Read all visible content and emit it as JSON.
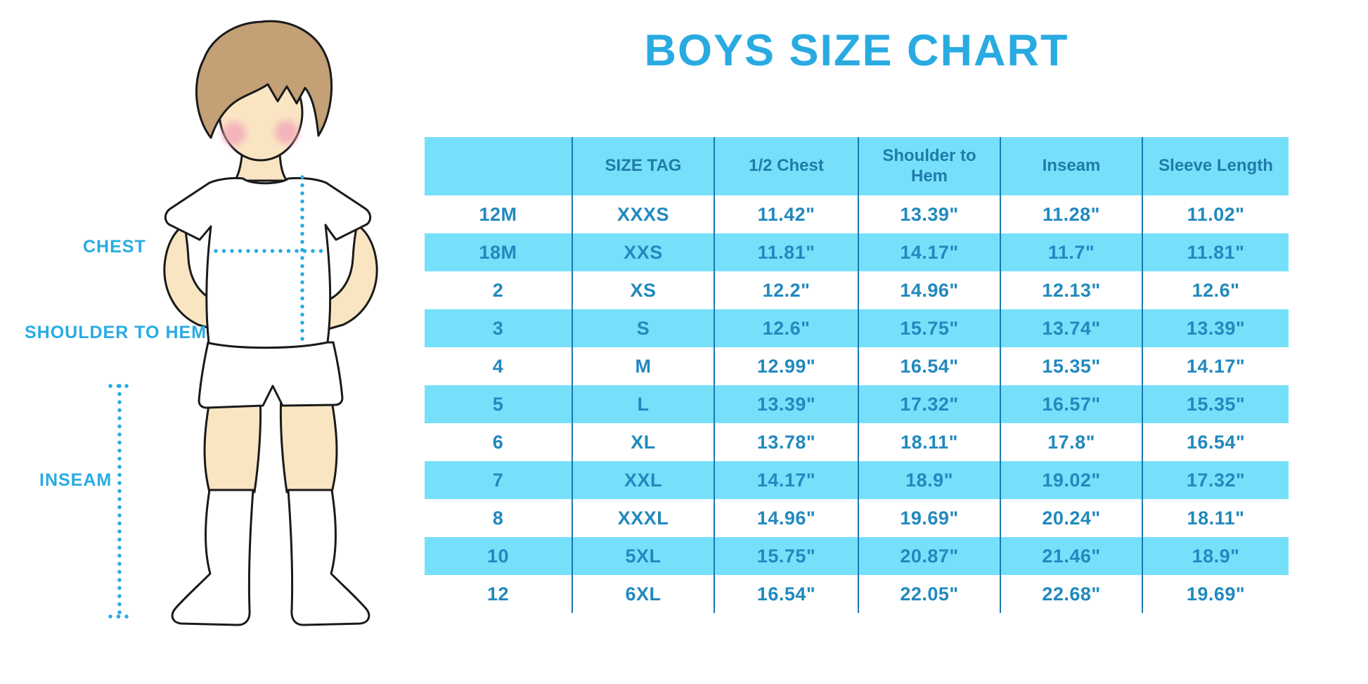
{
  "title": "BOYS SIZE CHART",
  "labels": {
    "chest": "CHEST",
    "shoulder_to_hem": "SHOULDER TO HEM",
    "inseam": "INSEAM"
  },
  "colors": {
    "accent_blue": "#29ABE2",
    "table_stripe_cyan": "#76E0FB",
    "table_value_text": "#2189BE",
    "table_header_text": "#1E7CA8",
    "column_divider": "#1878B0",
    "skin": "#FAE5C3",
    "hair": "#C3A075",
    "cheek": "#F2A3B8",
    "outline": "#1A1A1A"
  },
  "chart_data": {
    "type": "table",
    "title": "BOYS SIZE CHART",
    "units": "inches",
    "columns": [
      "",
      "SIZE TAG",
      "1/2 Chest",
      "Shoulder to Hem",
      "Inseam",
      "Sleeve Length"
    ],
    "rows": [
      [
        "12M",
        "XXXS",
        "11.42\"",
        "13.39\"",
        "11.28\"",
        "11.02\""
      ],
      [
        "18M",
        "XXS",
        "11.81\"",
        "14.17\"",
        "11.7\"",
        "11.81\""
      ],
      [
        "2",
        "XS",
        "12.2\"",
        "14.96\"",
        "12.13\"",
        "12.6\""
      ],
      [
        "3",
        "S",
        "12.6\"",
        "15.75\"",
        "13.74\"",
        "13.39\""
      ],
      [
        "4",
        "M",
        "12.99\"",
        "16.54\"",
        "15.35\"",
        "14.17\""
      ],
      [
        "5",
        "L",
        "13.39\"",
        "17.32\"",
        "16.57\"",
        "15.35\""
      ],
      [
        "6",
        "XL",
        "13.78\"",
        "18.11\"",
        "17.8\"",
        "16.54\""
      ],
      [
        "7",
        "XXL",
        "14.17\"",
        "18.9\"",
        "19.02\"",
        "17.32\""
      ],
      [
        "8",
        "XXXL",
        "14.96\"",
        "19.69\"",
        "20.24\"",
        "18.11\""
      ],
      [
        "10",
        "5XL",
        "15.75\"",
        "20.87\"",
        "21.46\"",
        "18.9\""
      ],
      [
        "12",
        "6XL",
        "16.54\"",
        "22.05\"",
        "22.68\"",
        "19.69\""
      ]
    ]
  }
}
